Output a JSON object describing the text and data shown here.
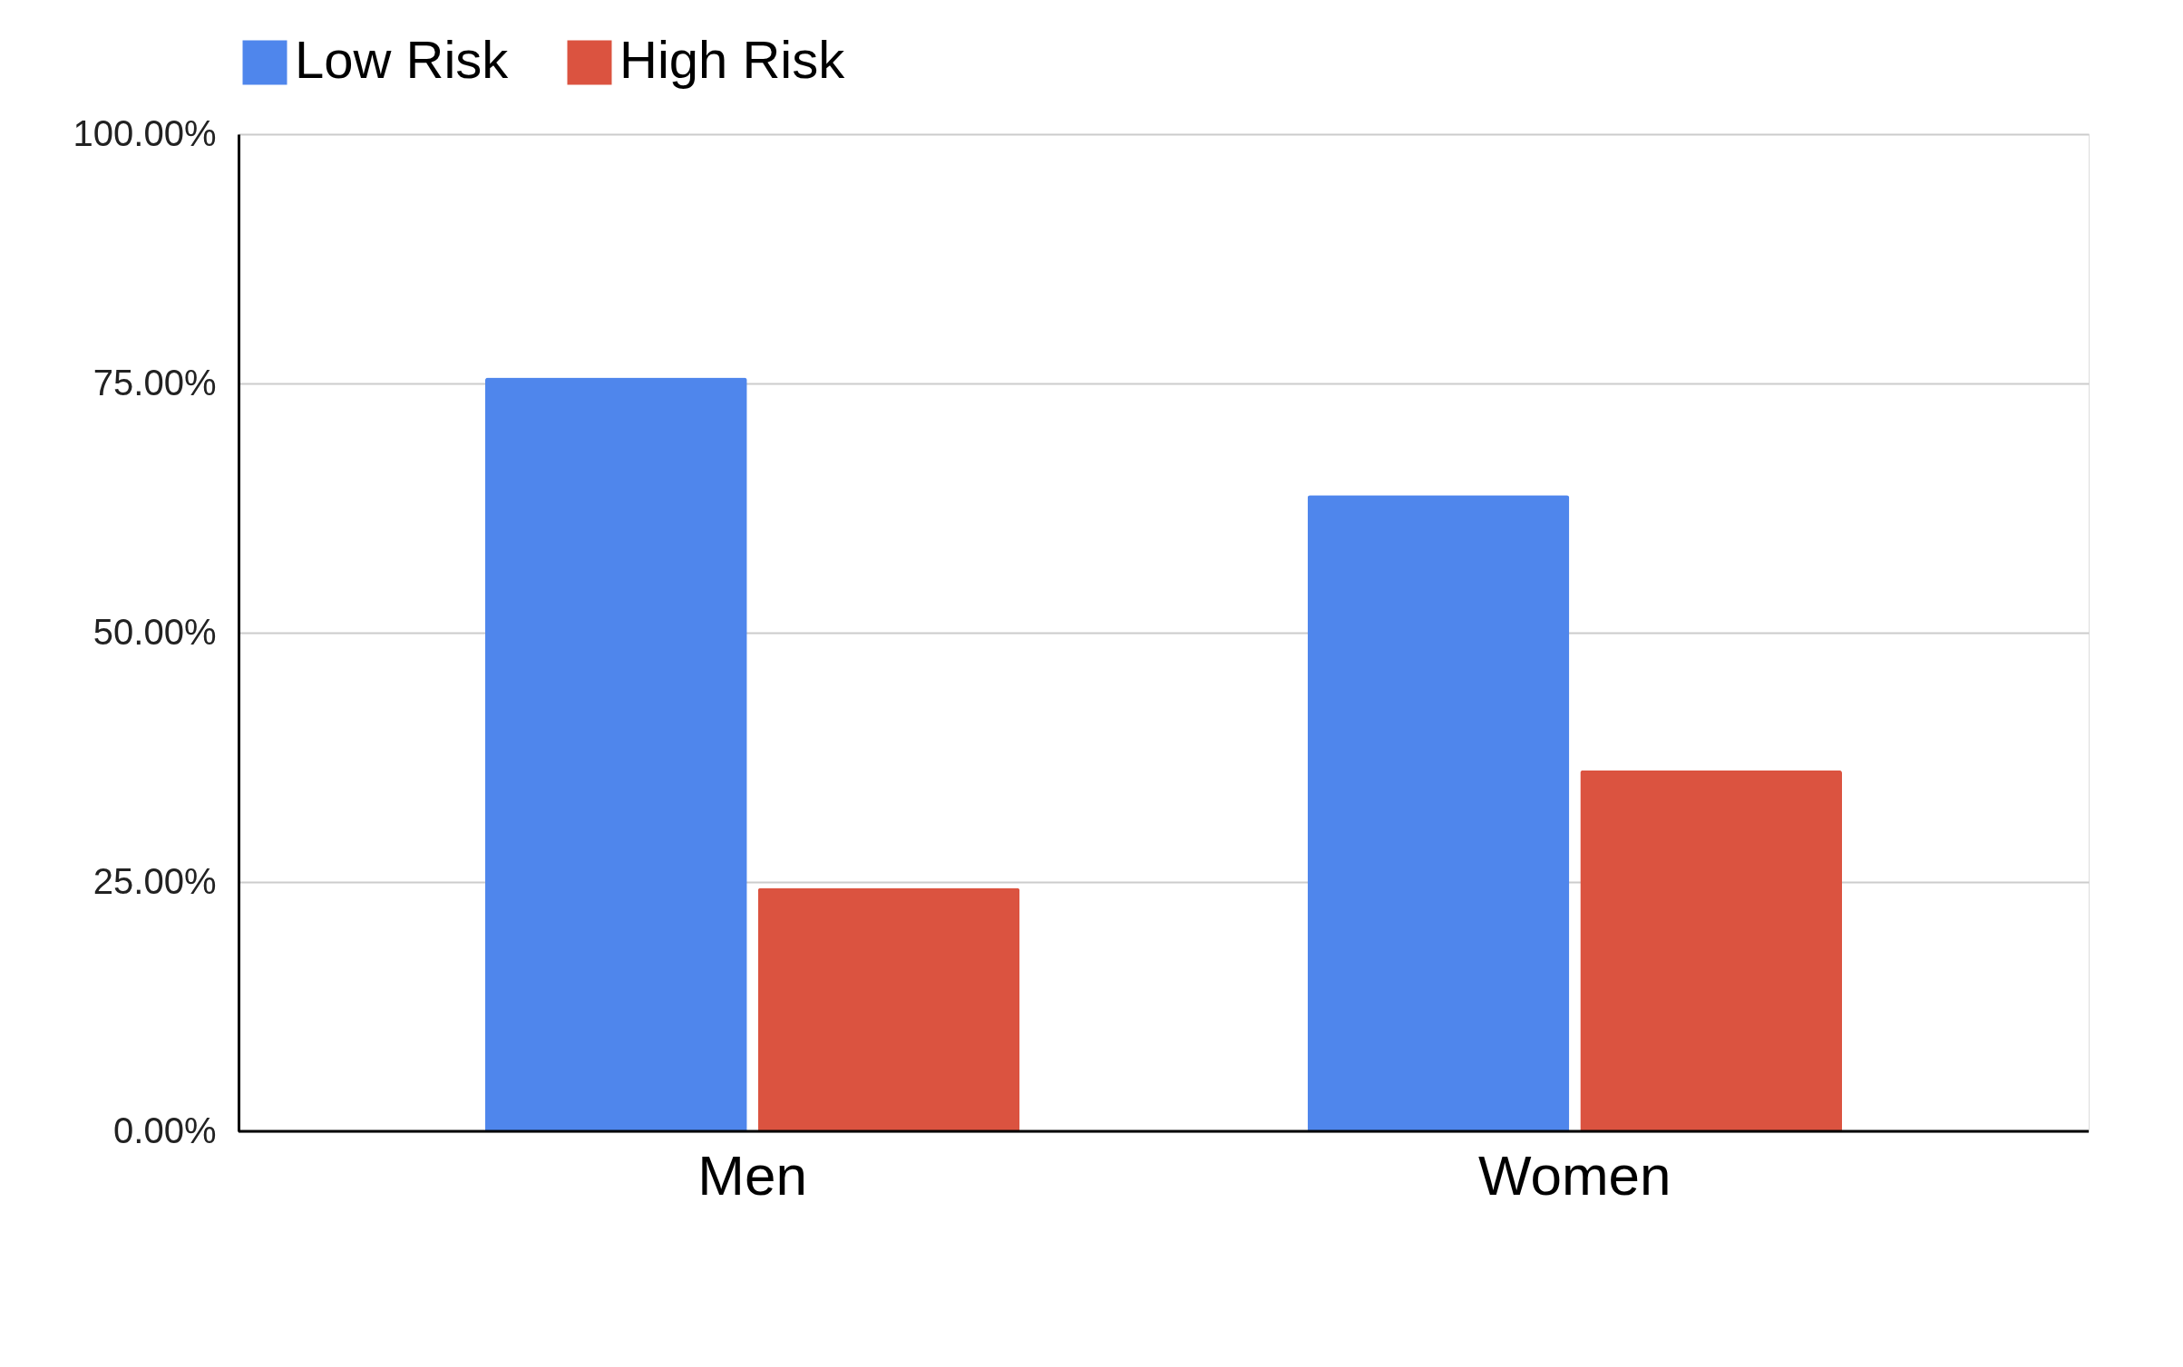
{
  "chart_data": {
    "type": "bar",
    "categories": [
      "Men",
      "Women"
    ],
    "series": [
      {
        "name": "Low Risk",
        "color": "#4f86ec",
        "values": [
          75.6,
          63.8
        ]
      },
      {
        "name": "High Risk",
        "color": "#db5340",
        "values": [
          24.4,
          36.2
        ]
      }
    ],
    "ylim": [
      0,
      100
    ],
    "yticks": [
      {
        "value": 0,
        "label": "0.00%"
      },
      {
        "value": 25,
        "label": "25.00%"
      },
      {
        "value": 50,
        "label": "50.00%"
      },
      {
        "value": 75,
        "label": "75.00%"
      },
      {
        "value": 100,
        "label": "100.00%"
      }
    ],
    "grid": "y",
    "legend": "top"
  }
}
